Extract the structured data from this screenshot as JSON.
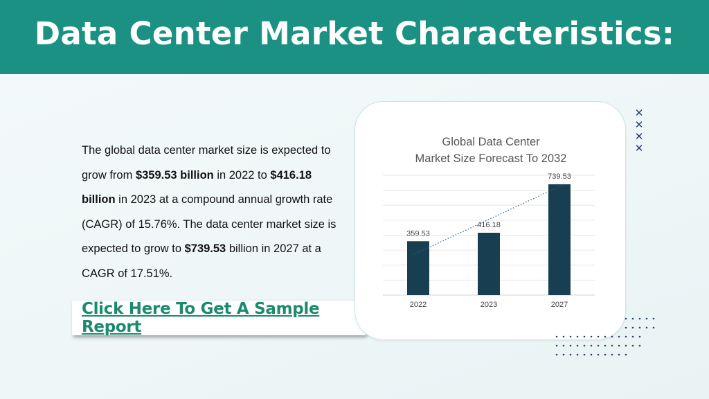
{
  "header": {
    "title": "Data Center Market Characteristics:"
  },
  "paragraph": {
    "p1": "The global data center market size is expected to grow from ",
    "b1": "$359.53 billion",
    "p2": " in 2022 to ",
    "b2": "$416.18 billion",
    "p3": " in 2023 at a compound annual growth rate (CAGR) of 15.76%. The data center market size is expected to grow to ",
    "b3": "$739.53",
    "p4": " billion in 2027 at a CAGR of 17.51%."
  },
  "cta": {
    "label": "Click Here To Get A Sample Report"
  },
  "colors": {
    "header": "#1b9184",
    "bar": "#173f51",
    "link": "#1b8a6e"
  },
  "chart_data": {
    "type": "bar",
    "title_lines": [
      "Global Data Center",
      "Market Size Forecast To 2032"
    ],
    "categories": [
      "2022",
      "2023",
      "2027"
    ],
    "values": [
      359.53,
      416.18,
      739.53
    ],
    "value_labels": [
      "359.53",
      "416.18",
      "739.53"
    ],
    "ylim": [
      0,
      800
    ],
    "grid": true,
    "trendline": "dotted-linear"
  }
}
